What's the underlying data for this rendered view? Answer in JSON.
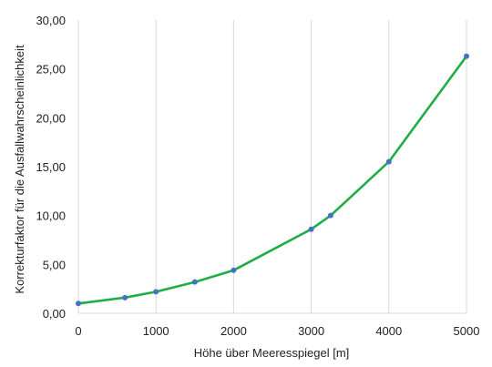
{
  "chart_data": {
    "type": "line",
    "xlabel": "Höhe über Meeresspiegel [m]",
    "ylabel": "Korrekturfaktor für die Ausfallwahrscheinlichkeit",
    "xlim": [
      0,
      5000
    ],
    "ylim": [
      0,
      30
    ],
    "x_ticks": [
      "0",
      "1000",
      "2000",
      "3000",
      "4000",
      "5000"
    ],
    "y_ticks": [
      "0,00",
      "5,00",
      "10,00",
      "15,00",
      "20,00",
      "25,00",
      "30,00"
    ],
    "grid": "vertical",
    "series": [
      {
        "x": [
          0,
          600,
          1000,
          1500,
          2000,
          3000,
          3250,
          4000,
          5000
        ],
        "y": [
          1.0,
          1.6,
          2.2,
          3.2,
          4.4,
          8.6,
          10.0,
          15.5,
          26.3
        ]
      }
    ],
    "colors": {
      "line": "#1fae45",
      "marker": "#4472c4",
      "grid": "#d9d9d9"
    }
  }
}
